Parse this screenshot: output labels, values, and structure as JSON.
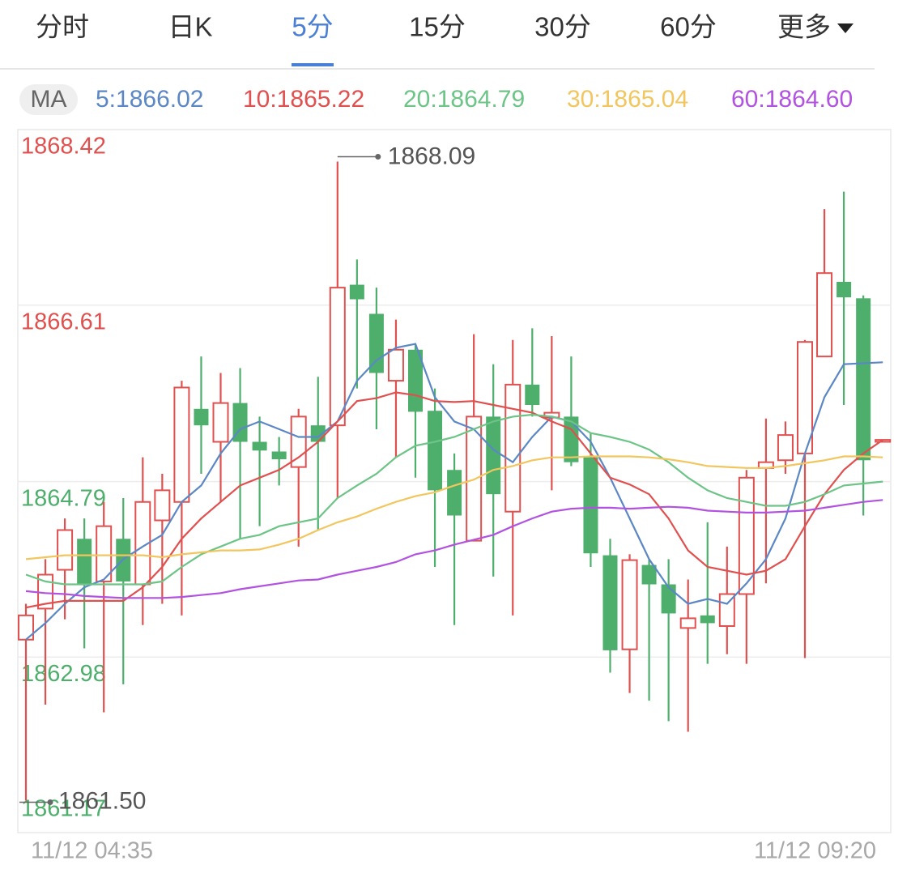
{
  "tabs": {
    "items": [
      "分时",
      "日K",
      "5分",
      "15分",
      "30分",
      "60分",
      "更多"
    ],
    "active": 2
  },
  "chart_data": {
    "type": "candlestick",
    "ma_label": "MA",
    "up_color": "#e0504f",
    "down_color": "#4daf6b",
    "ylim": [
      1861.17,
      1868.42
    ],
    "yticks": [
      1861.17,
      1862.98,
      1864.79,
      1866.61,
      1868.42
    ],
    "grid": true,
    "categories": [
      "11/12 04:35",
      null,
      null,
      null,
      null,
      null,
      null,
      null,
      null,
      null,
      null,
      null,
      null,
      null,
      null,
      null,
      null,
      null,
      null,
      null,
      null,
      null,
      null,
      null,
      null,
      null,
      null,
      null,
      null,
      null,
      null,
      null,
      null,
      null,
      null,
      null,
      null,
      null,
      null,
      null,
      null,
      null,
      null,
      null,
      "11/12 09:20"
    ],
    "open": [
      1863.16,
      1863.48,
      1863.88,
      1864.2,
      1863.76,
      1864.2,
      1863.73,
      1864.39,
      1864.58,
      1865.54,
      1865.2,
      1865.6,
      1865.2,
      1865.1,
      1864.94,
      1865.37,
      1865.37,
      1866.82,
      1866.52,
      1865.83,
      1866.15,
      1865.52,
      1864.91,
      1864.18,
      1865.46,
      1864.48,
      1865.79,
      1865.45,
      1865.46,
      1865.04,
      1864.03,
      1863.06,
      1863.93,
      1863.73,
      1863.28,
      1863.41,
      1863.3,
      1863.63,
      1864.93,
      1865.01,
      1865.08,
      1866.08,
      1866.85,
      1866.68,
      1865.2
    ],
    "high": [
      1863.53,
      1863.99,
      1864.41,
      1864.41,
      1864.58,
      1864.62,
      1865.04,
      1864.87,
      1865.83,
      1866.08,
      1865.91,
      1865.96,
      1865.46,
      1865.25,
      1865.54,
      1865.87,
      1868.09,
      1867.08,
      1866.79,
      1866.46,
      1866.21,
      1865.75,
      1865.08,
      1866.31,
      1866.0,
      1866.25,
      1866.37,
      1866.29,
      1866.08,
      1865.29,
      1864.2,
      1864.04,
      1863.99,
      1863.99,
      1863.78,
      1864.37,
      1864.12,
      1864.91,
      1865.44,
      1865.41,
      1866.25,
      1867.6,
      1867.78,
      1866.71,
      1865.22
    ],
    "low": [
      1861.5,
      1862.49,
      1863.37,
      1863.07,
      1862.41,
      1862.7,
      1863.31,
      1863.53,
      1863.41,
      1864.87,
      1864.58,
      1864.2,
      1864.33,
      1864.75,
      1864.12,
      1864.29,
      1864.62,
      1865.75,
      1865.33,
      1865.04,
      1864.83,
      1863.91,
      1863.31,
      1864.18,
      1863.81,
      1863.41,
      1865.46,
      1864.7,
      1864.95,
      1863.91,
      1862.82,
      1862.61,
      1862.53,
      1862.32,
      1862.21,
      1862.91,
      1863.01,
      1862.91,
      1863.74,
      1864.87,
      1862.97,
      1866.08,
      1865.58,
      1864.44,
      1865.2
    ],
    "close": [
      1863.41,
      1863.83,
      1864.29,
      1863.73,
      1864.33,
      1863.76,
      1864.58,
      1864.7,
      1865.76,
      1865.37,
      1865.6,
      1865.2,
      1865.11,
      1865.02,
      1865.46,
      1865.2,
      1866.79,
      1866.67,
      1865.91,
      1866.15,
      1865.51,
      1864.7,
      1864.44,
      1865.46,
      1864.66,
      1865.79,
      1865.58,
      1865.5,
      1864.99,
      1864.05,
      1863.05,
      1863.98,
      1863.73,
      1863.43,
      1863.38,
      1863.33,
      1863.63,
      1864.83,
      1864.99,
      1865.27,
      1866.23,
      1866.94,
      1866.69,
      1865.01,
      1865.22
    ],
    "max_label": {
      "value": 1868.09,
      "label": "1868.09"
    },
    "min_label": {
      "value": 1861.5,
      "label": "1861.50"
    },
    "series": [
      {
        "name": "5:1866.02",
        "color": "#5b87c5",
        "values": [
          1863.16,
          1863.33,
          1863.53,
          1863.7,
          1863.78,
          1863.99,
          1864.12,
          1864.24,
          1864.58,
          1864.75,
          1865.08,
          1865.33,
          1865.41,
          1865.33,
          1865.25,
          1865.25,
          1865.41,
          1865.83,
          1866.04,
          1866.17,
          1866.21,
          1865.66,
          1865.41,
          1865.33,
          1865.12,
          1864.99,
          1865.25,
          1865.46,
          1865.41,
          1865.2,
          1864.83,
          1864.41,
          1863.99,
          1863.7,
          1863.53,
          1863.58,
          1863.53,
          1863.74,
          1863.99,
          1864.41,
          1865.08,
          1865.66,
          1866.0,
          1866.01,
          1866.02
        ]
      },
      {
        "name": "10:1865.22",
        "color": "#e0504f",
        "values": [
          1863.49,
          1863.53,
          1863.56,
          1863.56,
          1863.56,
          1863.56,
          1863.7,
          1863.91,
          1864.2,
          1864.41,
          1864.58,
          1864.75,
          1864.83,
          1864.91,
          1865.04,
          1865.2,
          1865.41,
          1865.62,
          1865.65,
          1865.71,
          1865.68,
          1865.62,
          1865.61,
          1865.62,
          1865.58,
          1865.54,
          1865.5,
          1865.41,
          1865.33,
          1865.08,
          1864.83,
          1864.76,
          1864.66,
          1864.41,
          1864.08,
          1863.91,
          1863.87,
          1863.83,
          1863.87,
          1863.99,
          1864.33,
          1864.66,
          1864.91,
          1865.08,
          1865.22
        ]
      },
      {
        "name": "20:1864.79",
        "color": "#6cc486",
        "values": [
          1863.83,
          1863.76,
          1863.73,
          1863.73,
          1863.73,
          1863.73,
          1863.73,
          1863.76,
          1863.91,
          1864.04,
          1864.12,
          1864.2,
          1864.24,
          1864.33,
          1864.37,
          1864.41,
          1864.62,
          1864.75,
          1864.87,
          1865.04,
          1865.16,
          1865.2,
          1865.25,
          1865.33,
          1865.41,
          1865.46,
          1865.48,
          1865.46,
          1865.41,
          1865.29,
          1865.25,
          1865.2,
          1865.12,
          1864.99,
          1864.83,
          1864.7,
          1864.62,
          1864.58,
          1864.54,
          1864.54,
          1864.58,
          1864.66,
          1864.75,
          1864.77,
          1864.79
        ]
      },
      {
        "name": "30:1865.04",
        "color": "#f1c65e",
        "values": [
          1863.99,
          1864.01,
          1864.03,
          1864.03,
          1864.03,
          1864.03,
          1864.03,
          1864.01,
          1864.04,
          1864.06,
          1864.08,
          1864.08,
          1864.09,
          1864.14,
          1864.2,
          1864.29,
          1864.37,
          1864.43,
          1864.51,
          1864.58,
          1864.64,
          1864.68,
          1864.75,
          1864.81,
          1864.91,
          1864.95,
          1865.01,
          1865.04,
          1865.04,
          1865.05,
          1865.05,
          1865.05,
          1865.04,
          1865.02,
          1864.99,
          1864.95,
          1864.94,
          1864.93,
          1864.93,
          1864.95,
          1864.98,
          1865.01,
          1865.05,
          1865.05,
          1865.04
        ]
      },
      {
        "name": "60:1864.60",
        "color": "#b152e0",
        "values": [
          1863.66,
          1863.64,
          1863.63,
          1863.61,
          1863.6,
          1863.59,
          1863.59,
          1863.59,
          1863.6,
          1863.62,
          1863.64,
          1863.68,
          1863.71,
          1863.74,
          1863.77,
          1863.78,
          1863.83,
          1863.87,
          1863.91,
          1863.96,
          1864.04,
          1864.08,
          1864.14,
          1864.19,
          1864.24,
          1864.33,
          1864.41,
          1864.48,
          1864.51,
          1864.52,
          1864.52,
          1864.51,
          1864.52,
          1864.53,
          1864.52,
          1864.49,
          1864.48,
          1864.47,
          1864.47,
          1864.48,
          1864.49,
          1864.52,
          1864.55,
          1864.58,
          1864.6
        ]
      }
    ]
  }
}
